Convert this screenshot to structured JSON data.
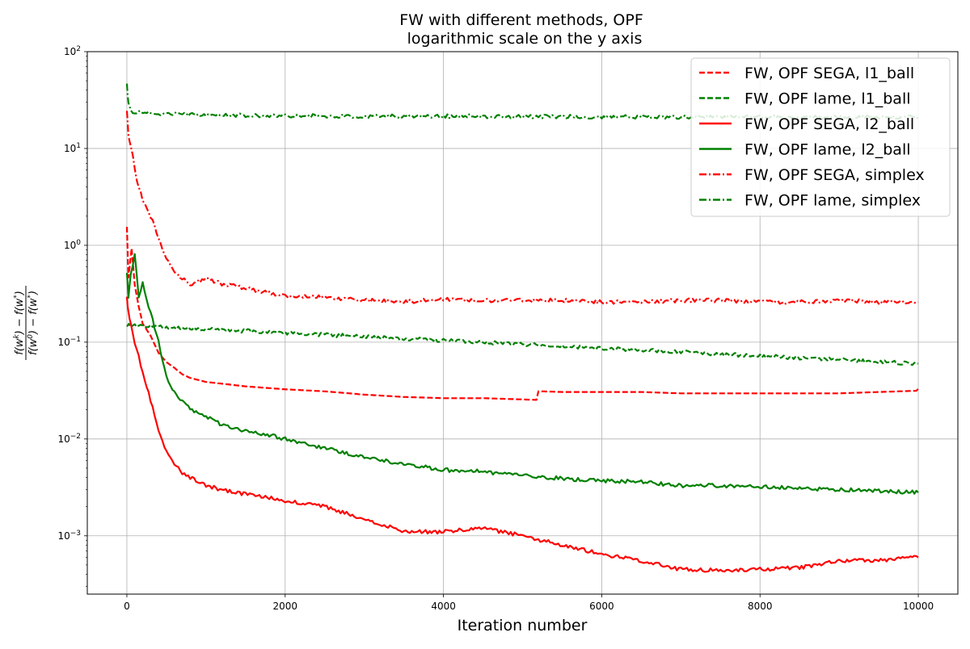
{
  "chart_data": {
    "type": "line",
    "title": "FW with different methods, OPF",
    "subtitle": "logarithmic scale on the y axis",
    "xlabel": "Iteration number",
    "ylabel": "f(w^k) − f(w^*) / f(w^0) − f(w^*)",
    "xlim": [
      -500,
      10500
    ],
    "ylim": [
      0.00025,
      100
    ],
    "yscale": "log",
    "grid": true,
    "legend_position": "top-right",
    "x_ticks": [
      0,
      2000,
      4000,
      6000,
      8000,
      10000
    ],
    "x_tick_labels": [
      "0",
      "2000",
      "4000",
      "6000",
      "8000",
      "10000"
    ],
    "y_ticks": [
      0.001,
      0.01,
      0.1,
      1,
      10,
      100
    ],
    "y_tick_labels": [
      {
        "base": "10",
        "exp": "−3"
      },
      {
        "base": "10",
        "exp": "−2"
      },
      {
        "base": "10",
        "exp": "−1"
      },
      {
        "base": "10",
        "exp": "0"
      },
      {
        "base": "10",
        "exp": "1"
      },
      {
        "base": "10",
        "exp": "2"
      }
    ],
    "series": [
      {
        "name": "FW, OPF SEGA, l1_ball",
        "color": "#ff0000",
        "dash": "dashed",
        "x": [
          0,
          20,
          60,
          100,
          150,
          200,
          300,
          400,
          500,
          600,
          700,
          800,
          1000,
          1200,
          1500,
          2000,
          2500,
          3000,
          3500,
          4000,
          4500,
          5000,
          5500,
          6000,
          6500,
          7000,
          7500,
          8000,
          8500,
          9000,
          9500,
          10000
        ],
        "y": [
          2.0,
          0.6,
          1.2,
          0.5,
          0.3,
          0.2,
          0.15,
          0.1,
          0.08,
          0.07,
          0.06,
          0.055,
          0.05,
          0.048,
          0.045,
          0.042,
          0.04,
          0.037,
          0.035,
          0.034,
          0.034,
          0.033,
          0.032,
          0.032,
          0.032,
          0.031,
          0.031,
          0.031,
          0.031,
          0.031,
          0.032,
          0.033
        ]
      },
      {
        "name": "FW, OPF lame, l1_ball",
        "color": "#008000",
        "dash": "dashed",
        "x": [
          0,
          10000
        ],
        "y": [
          0.15,
          0.06
        ]
      },
      {
        "name": "FW, OPF SEGA, l2_ball",
        "color": "#ff0000",
        "dash": "solid",
        "x": [
          0,
          20,
          50,
          100,
          150,
          200,
          300,
          400,
          500,
          600,
          700,
          800,
          1000,
          1200,
          1500,
          1800,
          2000,
          2500,
          3000,
          3500,
          4000,
          4500,
          5000,
          5500,
          6000,
          6500,
          7000,
          7500,
          8000,
          8500,
          9000,
          9500,
          10000
        ],
        "y": [
          0.3,
          0.2,
          0.15,
          0.1,
          0.07,
          0.05,
          0.025,
          0.012,
          0.0075,
          0.0055,
          0.0045,
          0.004,
          0.0033,
          0.003,
          0.0027,
          0.0025,
          0.0023,
          0.002,
          0.0015,
          0.0011,
          0.0011,
          0.0012,
          0.001,
          0.0008,
          0.00065,
          0.00055,
          0.00045,
          0.00044,
          0.00045,
          0.00047,
          0.00055,
          0.00056,
          0.0006
        ]
      },
      {
        "name": "FW, OPF lame, l2_ball",
        "color": "#008000",
        "dash": "solid",
        "x": [
          0,
          20,
          50,
          100,
          150,
          200,
          300,
          400,
          500,
          600,
          700,
          800,
          1000,
          1200,
          1500,
          1800,
          2000,
          2500,
          3000,
          3500,
          4000,
          4500,
          5000,
          5500,
          6000,
          6500,
          7000,
          7500,
          8000,
          8500,
          9000,
          9500,
          10000
        ],
        "y": [
          0.5,
          0.3,
          0.5,
          0.8,
          0.3,
          0.4,
          0.2,
          0.1,
          0.045,
          0.03,
          0.025,
          0.02,
          0.017,
          0.014,
          0.012,
          0.011,
          0.01,
          0.008,
          0.0065,
          0.0055,
          0.0048,
          0.0046,
          0.0042,
          0.0039,
          0.0037,
          0.0036,
          0.0033,
          0.0033,
          0.0032,
          0.0031,
          0.003,
          0.0029,
          0.0028
        ]
      },
      {
        "name": "FW, OPF SEGA, simplex",
        "color": "#ff0000",
        "dash": "dashdot",
        "x": [
          0,
          20,
          50,
          100,
          150,
          200,
          300,
          400,
          500,
          600,
          700,
          800,
          1000,
          1200,
          1500,
          1800,
          2000,
          2500,
          3000,
          3500,
          4000,
          4500,
          5000,
          5500,
          6000,
          6500,
          7000,
          7500,
          8000,
          8500,
          9000,
          9500,
          10000
        ],
        "y": [
          25,
          13,
          11,
          6,
          4,
          3,
          2,
          1.2,
          0.7,
          0.55,
          0.45,
          0.4,
          0.45,
          0.4,
          0.36,
          0.32,
          0.3,
          0.29,
          0.27,
          0.26,
          0.28,
          0.27,
          0.27,
          0.27,
          0.26,
          0.26,
          0.27,
          0.27,
          0.26,
          0.26,
          0.27,
          0.26,
          0.26
        ]
      },
      {
        "name": "FW, OPF lame, simplex",
        "color": "#008000",
        "dash": "dashdot",
        "x": [
          0,
          20,
          50,
          100,
          150,
          200,
          300,
          400,
          600,
          800,
          1000,
          1500,
          2000,
          3000,
          4000,
          5000,
          6000,
          7000,
          8000,
          9000,
          10000
        ],
        "y": [
          45,
          30,
          25,
          23,
          24,
          24,
          23.5,
          23,
          22.8,
          22.5,
          22.3,
          22,
          21.8,
          21.6,
          21.6,
          21.4,
          21.3,
          21.2,
          21.1,
          21.0,
          21.0
        ]
      }
    ]
  }
}
